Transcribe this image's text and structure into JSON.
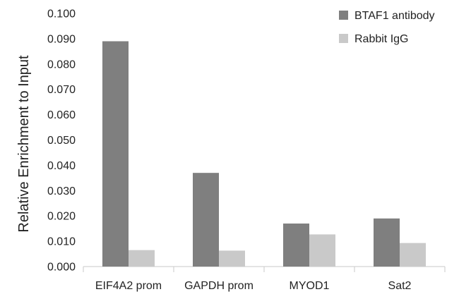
{
  "chart_data": {
    "type": "bar",
    "categories": [
      "EIF4A2 prom",
      "GAPDH prom",
      "MYOD1",
      "Sat2"
    ],
    "series": [
      {
        "name": "BTAF1 antibody",
        "values": [
          0.089,
          0.037,
          0.017,
          0.019
        ],
        "color": "#7f7f7f"
      },
      {
        "name": "Rabbit IgG",
        "values": [
          0.0065,
          0.0063,
          0.0127,
          0.0093
        ],
        "color": "#c9c9c9"
      }
    ],
    "title": "",
    "xlabel": "",
    "ylabel": "Relative Enrichment to Input",
    "ylim": [
      0,
      0.1
    ],
    "yticks": [
      "0.000",
      "0.010",
      "0.020",
      "0.030",
      "0.040",
      "0.050",
      "0.060",
      "0.070",
      "0.080",
      "0.090",
      "0.100"
    ],
    "grid": false,
    "legend_position": "top-right"
  }
}
